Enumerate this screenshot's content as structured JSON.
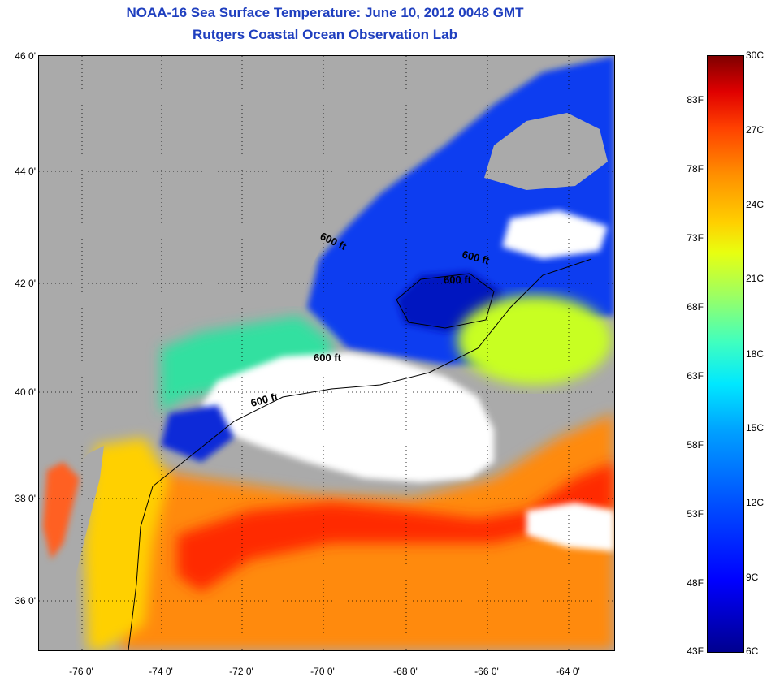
{
  "title": {
    "line1": "NOAA-16 Sea Surface Temperature:  June 10, 2012 0048 GMT",
    "line2": "Rutgers Coastal Ocean Observation Lab"
  },
  "map": {
    "lat_labels": [
      "46 0'",
      "44 0'",
      "42 0'",
      "40 0'",
      "38 0'",
      "36 0'"
    ],
    "lon_labels": [
      "-76 0'",
      "-74 0'",
      "-72 0'",
      "-70 0'",
      "-68 0'",
      "-66 0'",
      "-64 0'"
    ],
    "contour_labels": [
      "600 ft",
      "600 ft",
      "600 ft",
      "600 ft",
      "600 ft"
    ],
    "colors": {
      "land": "#aaaaaa",
      "cloud": "#ffffff",
      "cold": "#0a3cf0",
      "warm": "#ff5a14"
    }
  },
  "colorbar": {
    "celsius": [
      "30C",
      "27C",
      "24C",
      "21C",
      "18C",
      "15C",
      "12C",
      "9C",
      "6C"
    ],
    "fahrenheit": [
      "83F",
      "78F",
      "73F",
      "68F",
      "63F",
      "58F",
      "53F",
      "48F",
      "43F"
    ]
  }
}
